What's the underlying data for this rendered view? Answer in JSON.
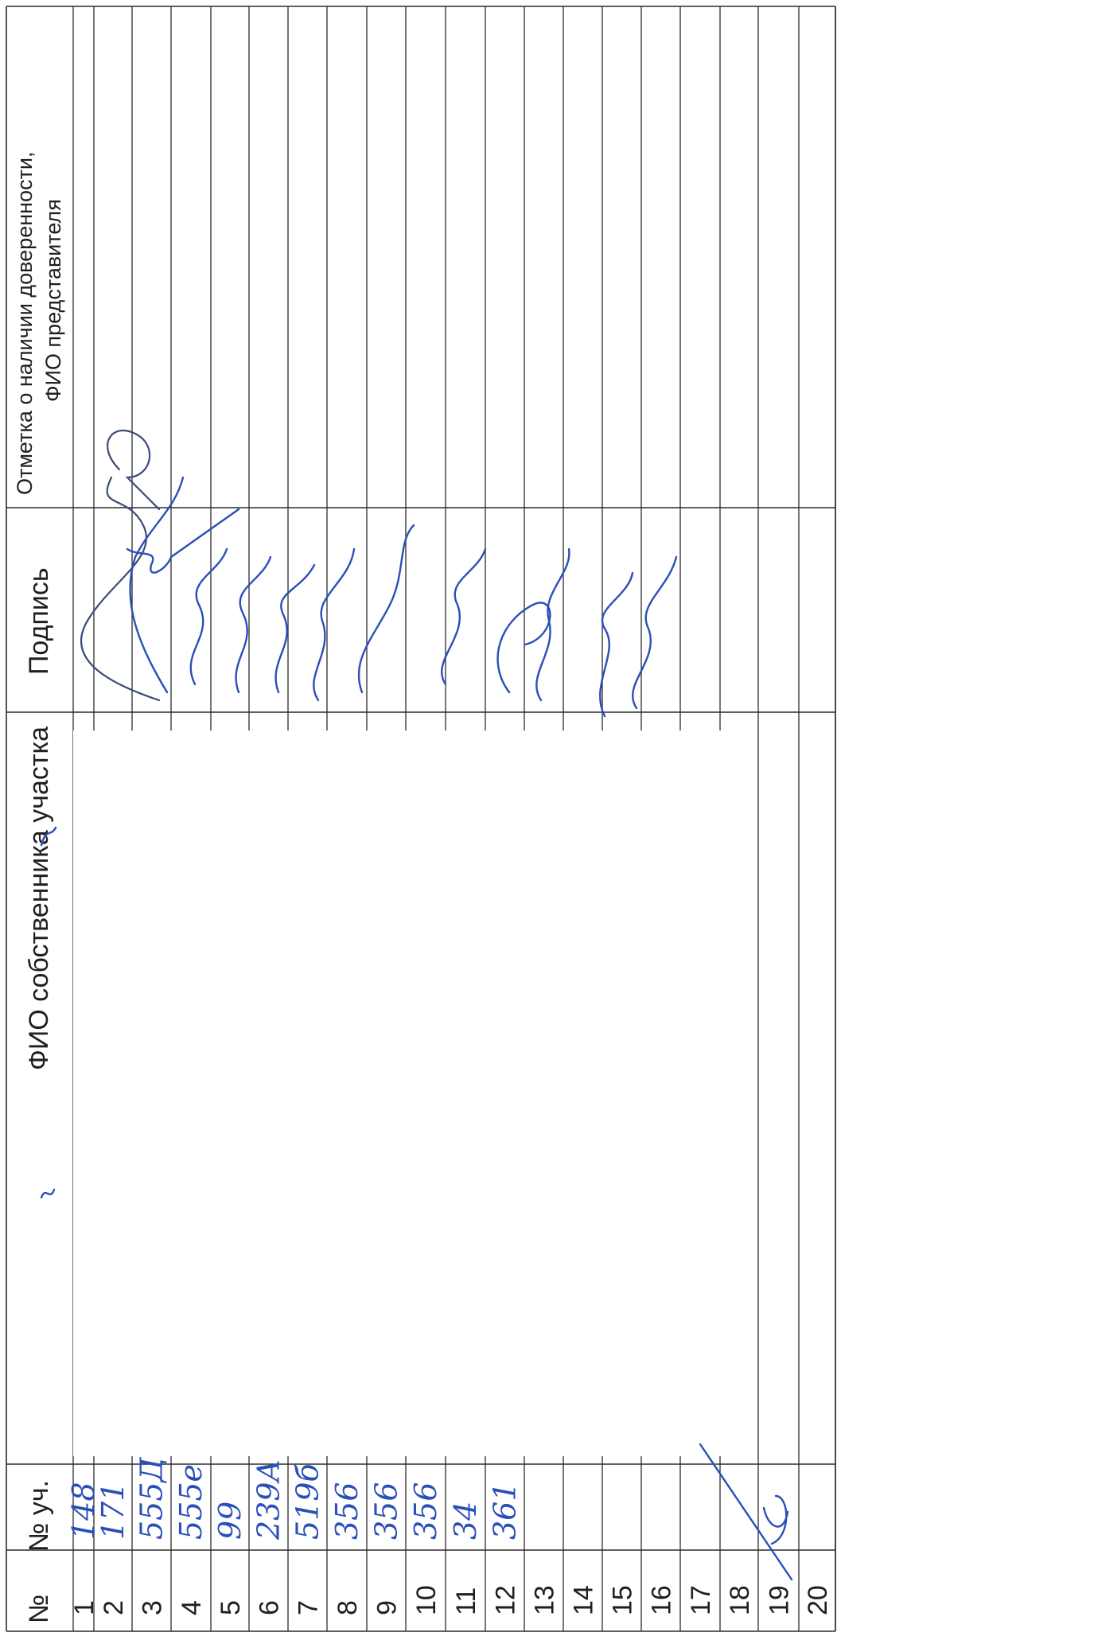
{
  "headers": {
    "num": "№",
    "plot_num": "№ уч.",
    "owner_name": "ФИО собственника  участка",
    "signature": "Подпись",
    "proxy_line1": "Отметка о наличии доверенности,",
    "proxy_line2": "ФИО представителя"
  },
  "rows": [
    {
      "n": "1",
      "plot": "148"
    },
    {
      "n": "2",
      "plot": "171"
    },
    {
      "n": "3",
      "plot": "555Д"
    },
    {
      "n": "4",
      "plot": "555е"
    },
    {
      "n": "5",
      "plot": "99"
    },
    {
      "n": "6",
      "plot": "239А"
    },
    {
      "n": "7",
      "plot": "519б"
    },
    {
      "n": "8",
      "plot": "356"
    },
    {
      "n": "9",
      "plot": "356"
    },
    {
      "n": "10",
      "plot": "356"
    },
    {
      "n": "11",
      "plot": "34"
    },
    {
      "n": "12",
      "plot": "361"
    },
    {
      "n": "13",
      "plot": ""
    },
    {
      "n": "14",
      "plot": ""
    },
    {
      "n": "15",
      "plot": ""
    },
    {
      "n": "16",
      "plot": ""
    },
    {
      "n": "17",
      "plot": ""
    },
    {
      "n": "18",
      "plot": ""
    },
    {
      "n": "19",
      "plot": ""
    },
    {
      "n": "20",
      "plot": ""
    }
  ],
  "colors": {
    "ink": "#2a4fb8",
    "grid": "#2b2b2b"
  }
}
